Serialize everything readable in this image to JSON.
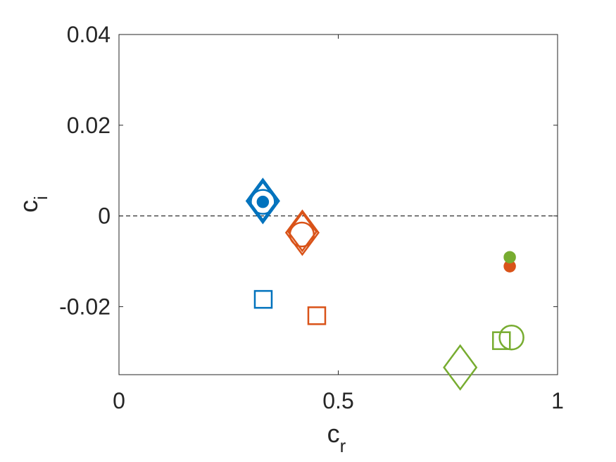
{
  "chart_data": {
    "type": "scatter",
    "xlabel": "c",
    "xlabel_sub": "r",
    "ylabel": "c",
    "ylabel_sub": "i",
    "xlim": [
      0,
      1
    ],
    "ylim": [
      -0.035,
      0.04
    ],
    "xticks": [
      0,
      0.5,
      1
    ],
    "xtick_labels": [
      "0",
      "0.5",
      "1"
    ],
    "yticks": [
      0.04,
      0.02,
      0,
      -0.02
    ],
    "ytick_labels": [
      "0.04",
      "0.02",
      "0",
      "-0.02"
    ],
    "grid": false,
    "reference_line": {
      "y": 0,
      "style": "dashed",
      "color": "#000000"
    },
    "series": [
      {
        "color": "#0072BD",
        "points": [
          {
            "marker": "diamond",
            "x": 0.328,
            "y": 0.0033
          },
          {
            "marker": "diamond",
            "x": 0.328,
            "y": 0.0033
          },
          {
            "marker": "circle",
            "x": 0.328,
            "y": 0.0031
          },
          {
            "marker": "filled-circle",
            "x": 0.328,
            "y": 0.0031
          },
          {
            "marker": "square",
            "x": 0.329,
            "y": -0.0184
          }
        ]
      },
      {
        "color": "#D95319",
        "points": [
          {
            "marker": "diamond",
            "x": 0.418,
            "y": -0.0037
          },
          {
            "marker": "diamond",
            "x": 0.418,
            "y": -0.0035
          },
          {
            "marker": "circle",
            "x": 0.417,
            "y": -0.0041
          },
          {
            "marker": "filled-circle",
            "x": 0.891,
            "y": -0.0111
          },
          {
            "marker": "square",
            "x": 0.451,
            "y": -0.022
          }
        ]
      },
      {
        "color": "#77AC30",
        "points": [
          {
            "marker": "diamond",
            "x": 0.778,
            "y": -0.0334
          },
          {
            "marker": "circle",
            "x": 0.895,
            "y": -0.0268
          },
          {
            "marker": "filled-circle",
            "x": 0.891,
            "y": -0.0091
          },
          {
            "marker": "square",
            "x": 0.872,
            "y": -0.0275
          }
        ]
      }
    ]
  }
}
